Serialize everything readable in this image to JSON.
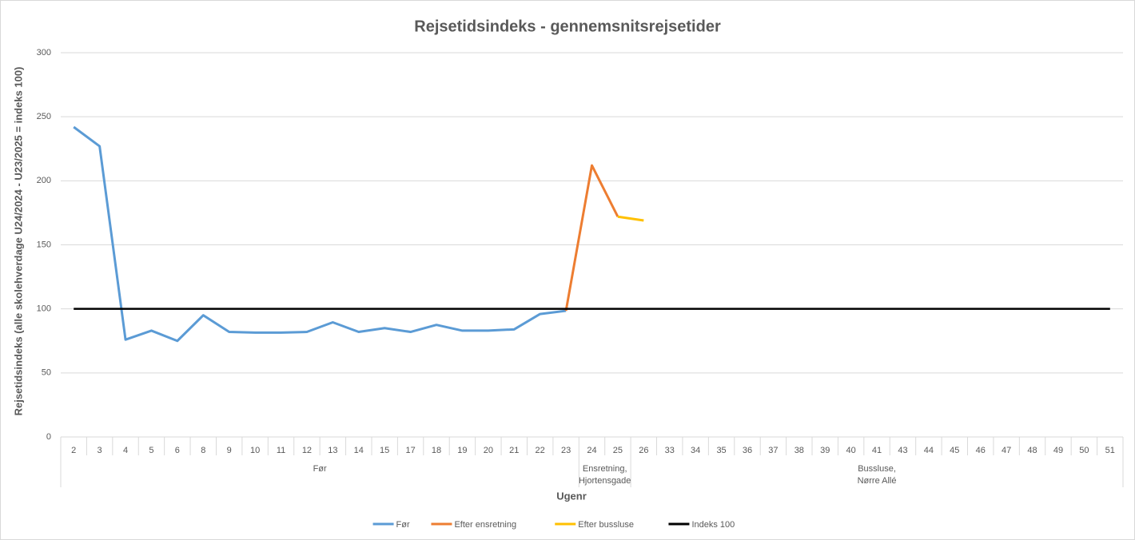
{
  "chart_data": {
    "type": "line",
    "title": "Rejsetidsindeks - gennemsnitsrejsetider",
    "x_label": "Ugenr",
    "y_label": "Rejsetidsindeks (alle skolehverdage U24/2024 - U23/2025 = indeks 100)",
    "categories": [
      "2",
      "3",
      "4",
      "5",
      "6",
      "8",
      "9",
      "10",
      "11",
      "12",
      "13",
      "14",
      "15",
      "17",
      "18",
      "19",
      "20",
      "21",
      "22",
      "23",
      "24",
      "25",
      "26",
      "33",
      "34",
      "35",
      "36",
      "37",
      "38",
      "39",
      "40",
      "41",
      "43",
      "44",
      "45",
      "46",
      "47",
      "48",
      "49",
      "50",
      "51"
    ],
    "groups": [
      {
        "label": [
          "Før"
        ],
        "span": 20
      },
      {
        "label": [
          "Ensretning,",
          "Hjortensgade"
        ],
        "span": 2
      },
      {
        "label": [
          "Bussluse,",
          "Nørre Allé"
        ],
        "span": 19
      }
    ],
    "series": [
      {
        "name": "Før",
        "color": "#5b9bd5",
        "values": [
          242,
          227,
          76,
          83,
          75,
          95,
          82,
          81.5,
          81.5,
          82,
          89.5,
          82,
          85,
          82,
          87.5,
          83,
          83,
          84,
          96,
          98.5,
          null,
          null,
          null,
          null,
          null,
          null,
          null,
          null,
          null,
          null,
          null,
          null,
          null,
          null,
          null,
          null,
          null,
          null,
          null,
          null,
          null
        ]
      },
      {
        "name": "Efter ensretning",
        "color": "#ed7d31",
        "values": [
          null,
          null,
          null,
          null,
          null,
          null,
          null,
          null,
          null,
          null,
          null,
          null,
          null,
          null,
          null,
          null,
          null,
          null,
          null,
          98.5,
          212,
          172,
          null,
          null,
          null,
          null,
          null,
          null,
          null,
          null,
          null,
          null,
          null,
          null,
          null,
          null,
          null,
          null,
          null,
          null,
          null
        ]
      },
      {
        "name": "Efter bussluse",
        "color": "#ffc000",
        "values": [
          null,
          null,
          null,
          null,
          null,
          null,
          null,
          null,
          null,
          null,
          null,
          null,
          null,
          null,
          null,
          null,
          null,
          null,
          null,
          null,
          null,
          172,
          169,
          null,
          null,
          null,
          null,
          null,
          null,
          null,
          null,
          null,
          null,
          null,
          null,
          null,
          null,
          null,
          null,
          null,
          null
        ]
      },
      {
        "name": "Indeks 100",
        "color": "#000000",
        "values": [
          100,
          100,
          100,
          100,
          100,
          100,
          100,
          100,
          100,
          100,
          100,
          100,
          100,
          100,
          100,
          100,
          100,
          100,
          100,
          100,
          100,
          100,
          100,
          100,
          100,
          100,
          100,
          100,
          100,
          100,
          100,
          100,
          100,
          100,
          100,
          100,
          100,
          100,
          100,
          100,
          100
        ]
      }
    ],
    "ylim": [
      0,
      300
    ],
    "yticks": [
      0,
      50,
      100,
      150,
      200,
      250,
      300
    ],
    "grid": true,
    "legend": "bottom"
  }
}
